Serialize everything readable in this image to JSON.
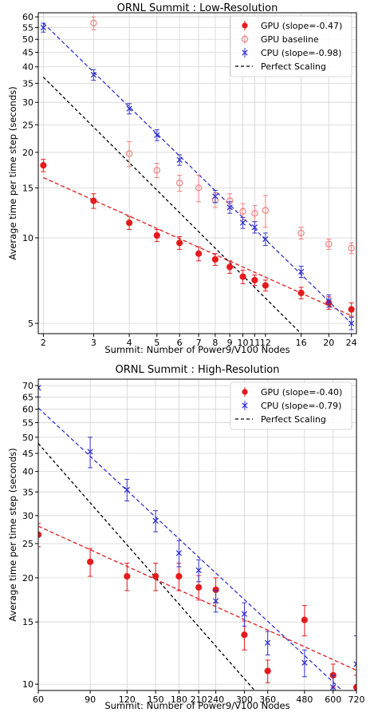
{
  "chart_data": [
    {
      "type": "scatter",
      "title": "ORNL Summit : Low-Resolution",
      "xlabel": "Summit: Number of Power9/V100 Nodes",
      "ylabel": "Average time per time step (seconds)",
      "xscale": "log",
      "yscale": "log",
      "xlim": [
        1.92,
        25.0
      ],
      "ylim": [
        4.6,
        62
      ],
      "x_ticks": [
        "2",
        "3",
        "4",
        "5",
        "6",
        "7",
        "8",
        "9",
        "10",
        "11",
        "12",
        "16",
        "20",
        "24"
      ],
      "x_tick_values": [
        2,
        3,
        4,
        5,
        6,
        7,
        8,
        9,
        10,
        11,
        12,
        16,
        20,
        24
      ],
      "y_ticks": [
        "5",
        "10",
        "15",
        "20",
        "25",
        "30",
        "35",
        "40",
        "45",
        "50",
        "55",
        "60"
      ],
      "y_tick_values": [
        5,
        10,
        15,
        20,
        25,
        30,
        35,
        40,
        45,
        50,
        55,
        60
      ],
      "grid": true,
      "legend_position": "top-right",
      "series": [
        {
          "name": "GPU (slope=-0.47)",
          "kind": "points-filled",
          "color": "#e41a1c",
          "x": [
            2,
            3,
            4,
            5,
            6,
            7,
            8,
            9,
            10,
            11,
            12,
            16,
            20,
            24
          ],
          "y": [
            18.0,
            13.5,
            11.3,
            10.2,
            9.6,
            8.8,
            8.4,
            7.9,
            7.3,
            7.1,
            6.8,
            6.4,
            5.9,
            5.6
          ],
          "err": [
            0.9,
            0.8,
            0.6,
            0.5,
            0.5,
            0.5,
            0.4,
            0.4,
            0.4,
            0.3,
            0.3,
            0.3,
            0.3,
            0.3
          ]
        },
        {
          "name": "GPU baseline",
          "kind": "points-open",
          "color": "#f08080",
          "x": [
            3,
            4,
            5,
            6,
            7,
            8,
            9,
            10,
            11,
            12,
            16,
            20,
            24
          ],
          "y": [
            57.0,
            19.8,
            17.3,
            15.6,
            15.0,
            13.6,
            13.5,
            12.4,
            12.2,
            12.5,
            10.4,
            9.5,
            9.2
          ],
          "err": [
            3.0,
            2.0,
            1.0,
            1.0,
            1.6,
            0.8,
            0.8,
            0.8,
            0.8,
            1.6,
            0.5,
            0.4,
            0.4
          ]
        },
        {
          "name": "CPU (slope=-0.98)",
          "kind": "points-x",
          "color": "#3333cc",
          "x": [
            2,
            3,
            4,
            5,
            6,
            8,
            9,
            10,
            11,
            12,
            16,
            20,
            24
          ],
          "y": [
            55.0,
            37.5,
            28.5,
            23.0,
            18.8,
            14.0,
            12.8,
            11.3,
            10.9,
            9.9,
            7.6,
            6.0,
            5.0
          ],
          "err": [
            2.0,
            1.6,
            1.2,
            1.0,
            0.8,
            0.7,
            0.6,
            0.5,
            0.5,
            0.5,
            0.35,
            0.3,
            0.25
          ]
        }
      ],
      "fits": [
        {
          "name": "GPU fit",
          "color": "#e41a1c",
          "x": [
            2,
            24
          ],
          "y": [
            16.3,
            5.32
          ]
        },
        {
          "name": "CPU fit",
          "color": "#3333cc",
          "x": [
            2,
            24
          ],
          "y": [
            57.0,
            5.0
          ]
        },
        {
          "name": "Perfect Scaling",
          "color": "#000000",
          "x": [
            2,
            16
          ],
          "y": [
            36.8,
            4.6
          ]
        }
      ],
      "legend": [
        {
          "label": "GPU (slope=-0.47)",
          "marker": "filled",
          "color": "#e41a1c"
        },
        {
          "label": "GPU baseline",
          "marker": "open",
          "color": "#f08080"
        },
        {
          "label": "CPU (slope=-0.98)",
          "marker": "x",
          "color": "#3333cc"
        },
        {
          "label": "Perfect Scaling",
          "marker": "dash",
          "color": "#000000"
        }
      ]
    },
    {
      "type": "scatter",
      "title": "ORNL Summit : High-Resolution",
      "xlabel": "Summit: Number of Power9/V100 Nodes",
      "ylabel": "Average time per time step (seconds)",
      "xscale": "log",
      "yscale": "log",
      "xlim": [
        60,
        720
      ],
      "ylim": [
        9.6,
        73
      ],
      "x_ticks": [
        "60",
        "90",
        "120",
        "150",
        "180",
        "210",
        "240",
        "300",
        "360",
        "480",
        "600",
        "720"
      ],
      "x_tick_values": [
        60,
        90,
        120,
        150,
        180,
        210,
        240,
        300,
        360,
        480,
        600,
        720
      ],
      "y_ticks": [
        "10",
        "15",
        "20",
        "25",
        "30",
        "35",
        "40",
        "45",
        "50",
        "55",
        "60",
        "65",
        "70"
      ],
      "y_tick_values": [
        10,
        15,
        20,
        25,
        30,
        35,
        40,
        45,
        50,
        55,
        60,
        65,
        70
      ],
      "grid": true,
      "legend_position": "top-right",
      "series": [
        {
          "name": "GPU (slope=-0.40)",
          "kind": "points-filled",
          "color": "#e41a1c",
          "x": [
            60,
            90,
            120,
            150,
            180,
            210,
            240,
            300,
            360,
            480,
            600,
            720
          ],
          "y": [
            26.5,
            22.2,
            20.2,
            20.2,
            20.2,
            18.8,
            18.5,
            13.8,
            10.9,
            15.2,
            10.6,
            9.8
          ],
          "err": [
            2.0,
            2.0,
            1.8,
            1.8,
            1.8,
            1.5,
            1.5,
            1.3,
            0.8,
            1.5,
            0.8,
            0.8
          ]
        },
        {
          "name": "CPU (slope=-0.79)",
          "kind": "points-x",
          "color": "#3333cc",
          "x": [
            60,
            90,
            120,
            150,
            180,
            210,
            240,
            300,
            360,
            480,
            600,
            720
          ],
          "y": [
            69.0,
            45.5,
            35.5,
            29.0,
            23.5,
            21.0,
            17.2,
            15.8,
            13.1,
            11.5,
            9.8,
            11.4
          ],
          "err": [
            4.0,
            4.5,
            2.5,
            2.0,
            2.0,
            1.5,
            1.2,
            1.2,
            1.0,
            1.0,
            0.8,
            2.3
          ]
        }
      ],
      "fits": [
        {
          "name": "GPU fit",
          "color": "#e41a1c",
          "x": [
            60,
            720
          ],
          "y": [
            28.0,
            10.95
          ]
        },
        {
          "name": "CPU fit",
          "color": "#3333cc",
          "x": [
            60,
            720
          ],
          "y": [
            60.5,
            8.8
          ]
        },
        {
          "name": "Perfect Scaling",
          "color": "#000000",
          "x": [
            60,
            325
          ],
          "y": [
            48.0,
            9.6
          ]
        }
      ],
      "legend": [
        {
          "label": "GPU (slope=-0.40)",
          "marker": "filled",
          "color": "#e41a1c"
        },
        {
          "label": "CPU (slope=-0.79)",
          "marker": "x",
          "color": "#3333cc"
        },
        {
          "label": "Perfect Scaling",
          "marker": "dash",
          "color": "#000000"
        }
      ]
    }
  ]
}
